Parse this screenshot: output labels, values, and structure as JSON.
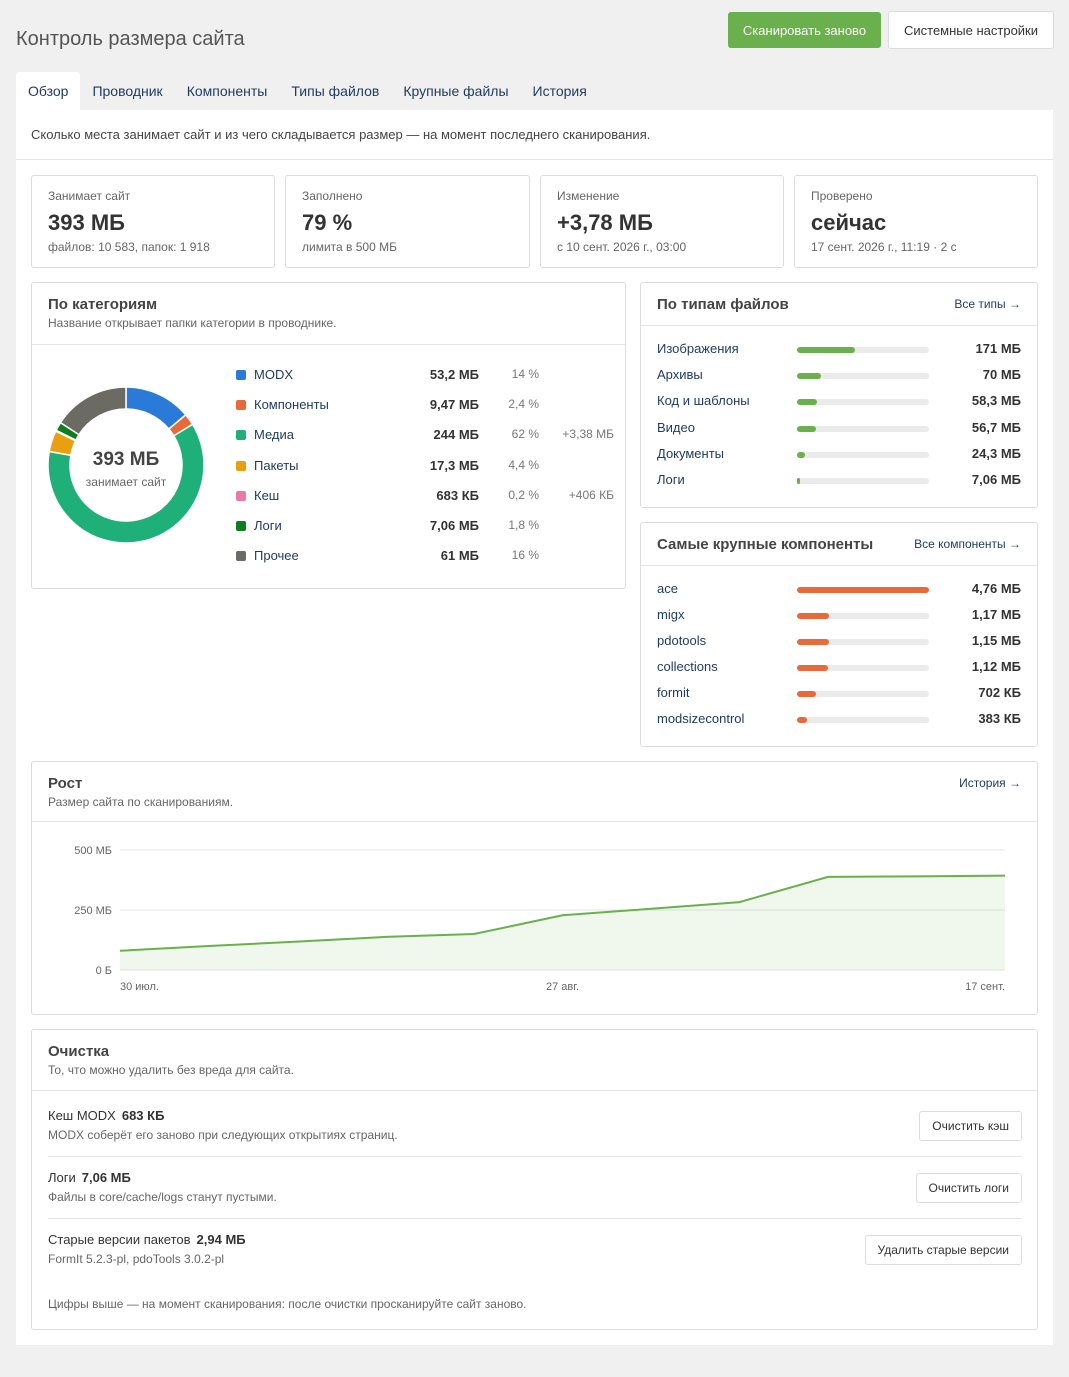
{
  "header": {
    "title": "Контроль размера сайта",
    "rescan_label": "Сканировать заново",
    "settings_label": "Системные настройки"
  },
  "tabs": [
    {
      "label": "Обзор",
      "active": true
    },
    {
      "label": "Проводник"
    },
    {
      "label": "Компоненты"
    },
    {
      "label": "Типы файлов"
    },
    {
      "label": "Крупные файлы"
    },
    {
      "label": "История"
    }
  ],
  "intro": "Сколько места занимает сайт и из чего складывается размер — на момент последнего сканирования.",
  "stats": [
    {
      "label": "Занимает сайт",
      "value": "393 МБ",
      "sub": "файлов: 10 583, папок: 1 918"
    },
    {
      "label": "Заполнено",
      "value": "79 %",
      "sub": "лимита в 500 МБ"
    },
    {
      "label": "Изменение",
      "value": "+3,78 МБ",
      "sub": "с 10 сент. 2026 г., 03:00"
    },
    {
      "label": "Проверено",
      "value": "сейчас",
      "sub": "17 сент. 2026 г., 11:19 · 2 с"
    }
  ],
  "categories": {
    "title": "По категориям",
    "subtitle": "Название открывает папки категории в проводнике.",
    "donut_value": "393 МБ",
    "donut_label": "занимает сайт",
    "items": [
      {
        "name": "MODX",
        "size": "53,2 МБ",
        "pct": "14 %",
        "delta": "",
        "color": "#2a7ad8",
        "share": 14
      },
      {
        "name": "Компоненты",
        "size": "9,47 МБ",
        "pct": "2,4 %",
        "delta": "",
        "color": "#e8693a",
        "share": 2.4
      },
      {
        "name": "Медиа",
        "size": "244 МБ",
        "pct": "62 %",
        "delta": "+3,38 МБ",
        "color": "#1fb07a",
        "share": 62
      },
      {
        "name": "Пакеты",
        "size": "17,3 МБ",
        "pct": "4,4 %",
        "delta": "",
        "color": "#e8a010",
        "share": 4.4
      },
      {
        "name": "Кеш",
        "size": "683 КБ",
        "pct": "0,2 %",
        "delta": "+406 КБ",
        "color": "#e87aa8",
        "share": 0.2
      },
      {
        "name": "Логи",
        "size": "7,06 МБ",
        "pct": "1,8 %",
        "delta": "",
        "color": "#0e7d1c",
        "share": 1.8
      },
      {
        "name": "Прочее",
        "size": "61 МБ",
        "pct": "16 %",
        "delta": "",
        "color": "#6b6b63",
        "share": 16
      }
    ]
  },
  "filetypes": {
    "title": "По типам файлов",
    "link": "Все типы →",
    "items": [
      {
        "name": "Изображения",
        "value": "171 МБ",
        "fraction": 0.44
      },
      {
        "name": "Архивы",
        "value": "70 МБ",
        "fraction": 0.18
      },
      {
        "name": "Код и шаблоны",
        "value": "58,3 МБ",
        "fraction": 0.15
      },
      {
        "name": "Видео",
        "value": "56,7 МБ",
        "fraction": 0.145
      },
      {
        "name": "Документы",
        "value": "24,3 МБ",
        "fraction": 0.063
      },
      {
        "name": "Логи",
        "value": "7,06 МБ",
        "fraction": 0.02
      }
    ],
    "color": "#6ab04c"
  },
  "components": {
    "title": "Самые крупные компоненты",
    "link": "Все компоненты →",
    "items": [
      {
        "name": "ace",
        "value": "4,76 МБ",
        "fraction": 1.0
      },
      {
        "name": "migx",
        "value": "1,17 МБ",
        "fraction": 0.246
      },
      {
        "name": "pdotools",
        "value": "1,15 МБ",
        "fraction": 0.242
      },
      {
        "name": "collections",
        "value": "1,12 МБ",
        "fraction": 0.235
      },
      {
        "name": "formit",
        "value": "702 КБ",
        "fraction": 0.144
      },
      {
        "name": "modsizecontrol",
        "value": "383 КБ",
        "fraction": 0.079
      }
    ],
    "color": "#e8693a"
  },
  "growth": {
    "title": "Рост",
    "subtitle": "Размер сайта по сканированиям.",
    "link": "История →"
  },
  "chart_data": {
    "type": "area",
    "title": "Рост",
    "x_tick_labels": [
      "30 июл.",
      "27 авг.",
      "17 сент."
    ],
    "y_tick_labels": [
      "500 МБ",
      "250 МБ",
      "0 Б"
    ],
    "ylim": [
      0,
      500
    ],
    "y_unit": "МБ",
    "x": [
      "30 июл.",
      "",
      "",
      "",
      "",
      "27 авг.",
      "",
      "",
      "",
      "",
      "17 сент."
    ],
    "values": [
      80,
      100,
      118,
      138,
      150,
      228,
      255,
      283,
      388,
      390,
      393
    ],
    "color": "#6ab04c",
    "grid": true
  },
  "cleanup": {
    "title": "Очистка",
    "subtitle": "То, что можно удалить без вреда для сайта.",
    "items": [
      {
        "name": "Кеш MODX",
        "size": "683 КБ",
        "desc": "MODX соберёт его заново при следующих открытиях страниц.",
        "button": "Очистить кэш"
      },
      {
        "name": "Логи",
        "size": "7,06 МБ",
        "desc": "Файлы в core/cache/logs станут пустыми.",
        "button": "Очистить логи"
      },
      {
        "name": "Старые версии пакетов",
        "size": "2,94 МБ",
        "desc": "FormIt 5.2.3-pl, pdoTools 3.0.2-pl",
        "button": "Удалить старые версии"
      }
    ],
    "footer": "Цифры выше — на момент сканирования: после очистки просканируйте сайт заново."
  }
}
